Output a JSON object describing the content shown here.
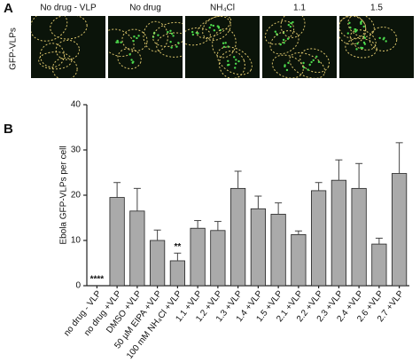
{
  "panel_a": {
    "letter": "A",
    "row_label": "GFP-VLPs",
    "columns": [
      "No drug - VLP",
      "No drug",
      "NH₄Cl",
      "1.1",
      "1.5"
    ]
  },
  "panel_b": {
    "letter": "B"
  },
  "chart_data": {
    "type": "bar",
    "ylabel": "Ebola GFP-VLPs per cell",
    "categories": [
      "no drug - VLP",
      "no drug +VLP",
      "DMSO +VLP",
      "50 µM EIPA +VLP",
      "100 mM NH₄Cl +VLP",
      "1.1 +VLP",
      "1.2 +VLP",
      "1.3 +VLP",
      "1.4 +VLP",
      "1.5 +VLP",
      "2.1 +VLP",
      "2.2 +VLP",
      "2.3 +VLP",
      "2.4 +VLP",
      "2.6 +VLP",
      "2.7 +VLP"
    ],
    "values": [
      0,
      19.5,
      16.5,
      10,
      5.5,
      12.7,
      12.2,
      21.5,
      17,
      15.8,
      11.3,
      21,
      23.3,
      21.5,
      9.2,
      24.8
    ],
    "errors": [
      0,
      3.3,
      5,
      2.3,
      1.7,
      1.7,
      2,
      3.8,
      2.8,
      2.5,
      0.8,
      1.8,
      4.5,
      5.5,
      1.3,
      6.8
    ],
    "significance": [
      "****",
      null,
      null,
      null,
      "**",
      null,
      null,
      null,
      null,
      null,
      null,
      null,
      null,
      null,
      null,
      null
    ],
    "color": "#aaaaaa",
    "ylim": [
      0,
      40
    ],
    "yticks": [
      0,
      10,
      20,
      30,
      40
    ]
  }
}
